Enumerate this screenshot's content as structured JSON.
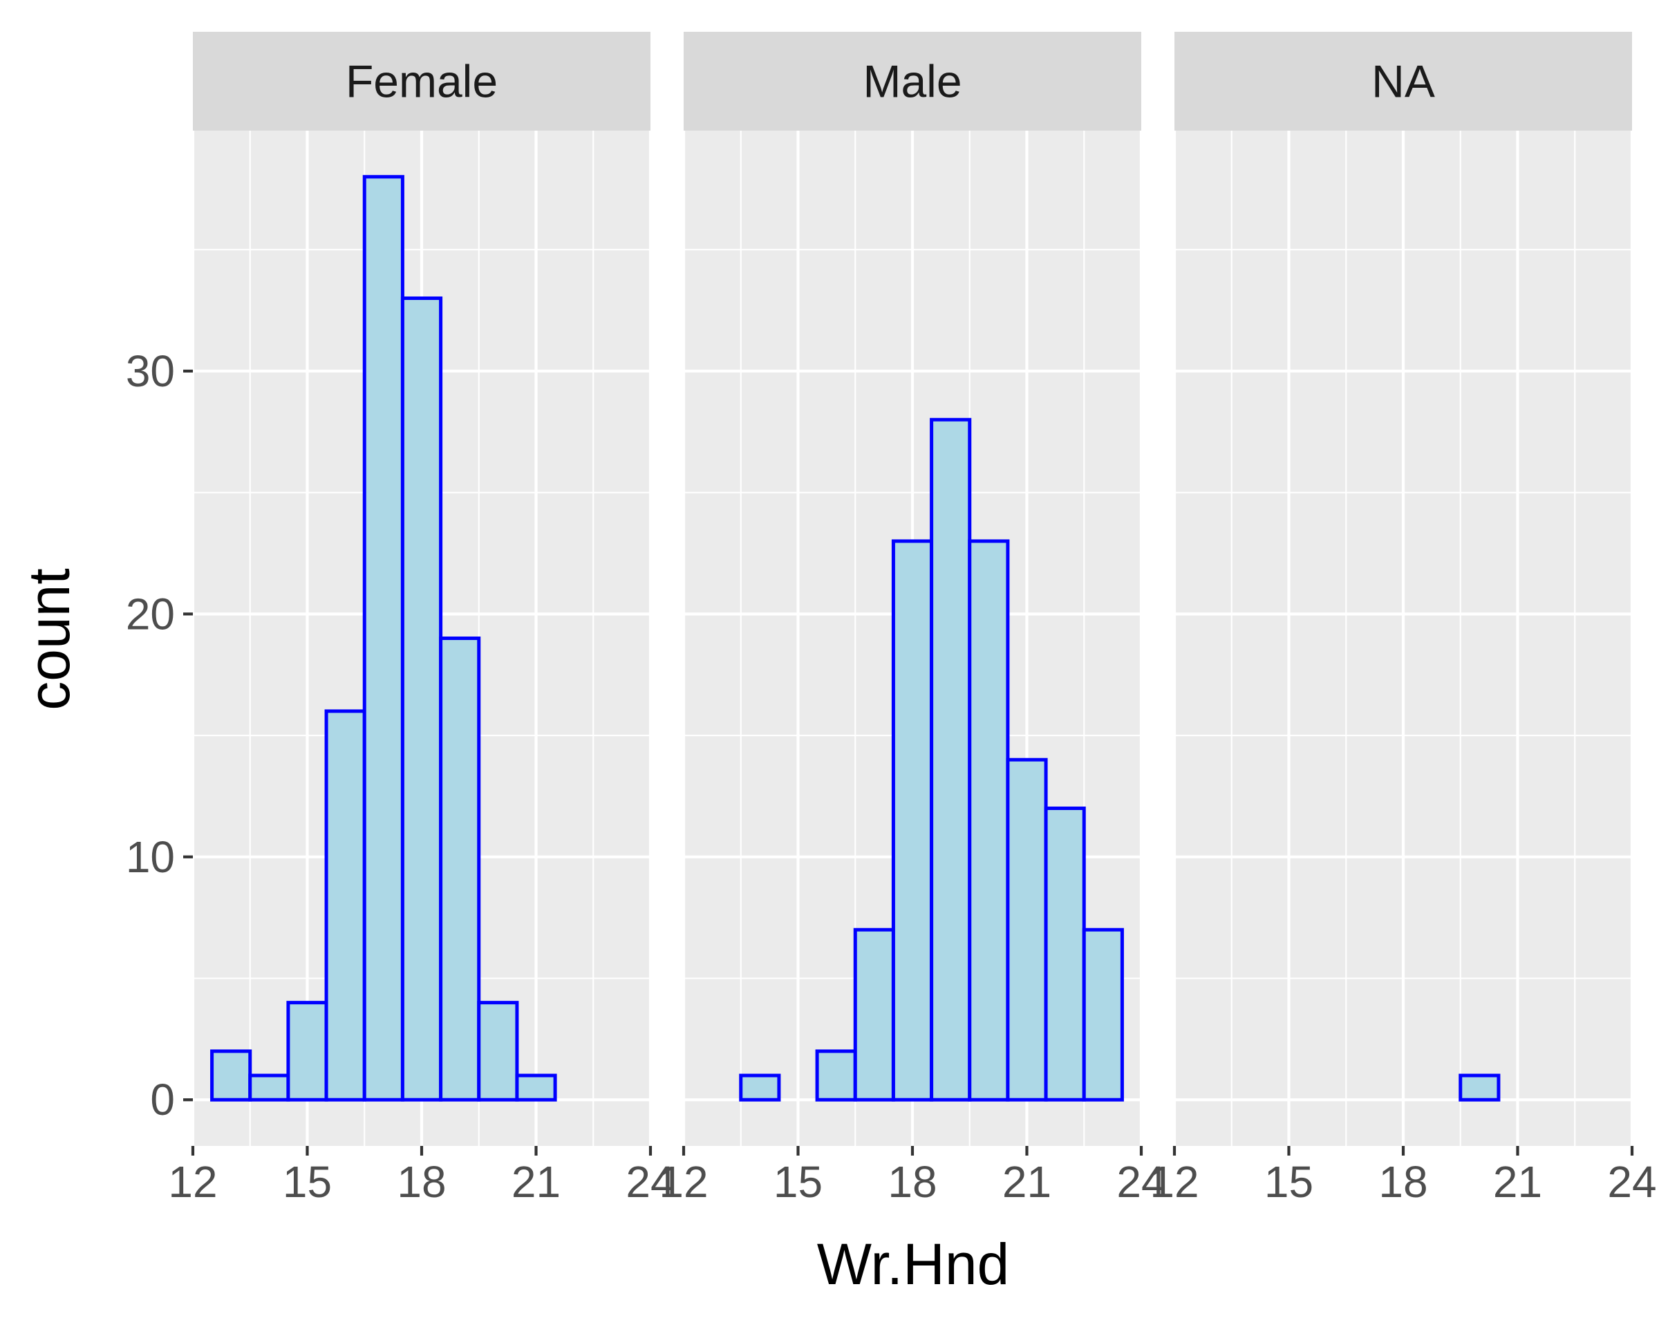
{
  "chart_data": {
    "type": "bar",
    "subtype": "faceted histogram",
    "xlabel": "Wr.Hnd",
    "ylabel": "count",
    "x_ticks": [
      12,
      15,
      18,
      21,
      24
    ],
    "y_ticks": [
      0,
      10,
      20,
      30
    ],
    "xlim": [
      12,
      24
    ],
    "ylim": [
      -1.9,
      39.9
    ],
    "bin_width": 1,
    "fill_color": "#add8e6",
    "outline_color": "#0000ff",
    "panel_background": "#ebebeb",
    "strip_background": "#d9d9d9",
    "grid": true,
    "bin_centers": [
      13,
      14,
      15,
      16,
      17,
      18,
      19,
      20,
      21,
      22,
      23
    ],
    "panels": [
      {
        "name": "Female",
        "values": [
          2,
          1,
          4,
          16,
          38,
          33,
          19,
          4,
          1,
          0,
          0
        ]
      },
      {
        "name": "Male",
        "values": [
          0,
          1,
          0,
          2,
          7,
          23,
          28,
          23,
          14,
          12,
          7
        ]
      },
      {
        "name": "NA",
        "values": [
          0,
          0,
          0,
          0,
          0,
          0,
          0,
          1,
          0,
          0,
          0
        ]
      }
    ]
  }
}
